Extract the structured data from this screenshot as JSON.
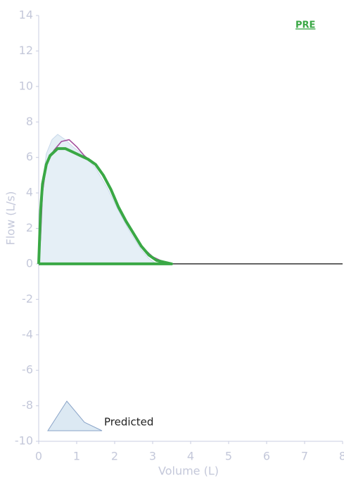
{
  "chart_data": {
    "type": "line",
    "xlabel": "Volume (L)",
    "ylabel": "Flow (L/s)",
    "xlim": [
      0,
      8
    ],
    "xticks": [
      0,
      1,
      2,
      3,
      4,
      5,
      6,
      7,
      8
    ],
    "ylim": [
      -10,
      14
    ],
    "yticks": [
      -10,
      -8,
      -6,
      -4,
      -2,
      0,
      2,
      4,
      6,
      8,
      10,
      12,
      14
    ],
    "series": [
      {
        "name": "Predicted",
        "color": "#dce9f3",
        "fill": true,
        "x": [
          0,
          0.1,
          0.2,
          0.35,
          0.5,
          0.7,
          0.9,
          1.2,
          1.5,
          1.8,
          2.1,
          2.4,
          2.7,
          2.9,
          3.1
        ],
        "values": [
          0,
          4.5,
          6.2,
          7.0,
          7.3,
          7.0,
          6.6,
          6.1,
          5.4,
          4.3,
          3.0,
          1.8,
          0.8,
          0.3,
          0
        ]
      },
      {
        "color": "#a04a9a",
        "x": [
          0,
          0.05,
          0.1,
          0.2,
          0.4,
          0.6,
          0.8,
          1.0,
          1.2,
          1.5,
          1.8,
          2.1,
          2.4,
          2.7,
          3.0,
          3.3,
          3.4
        ],
        "values": [
          0,
          1.5,
          4,
          5.6,
          6.4,
          6.9,
          7.0,
          6.6,
          6.1,
          5.6,
          4.6,
          3.1,
          2.0,
          1.0,
          0.4,
          0.1,
          0
        ]
      },
      {
        "name": "PRE",
        "color": "#3aa845",
        "x": [
          0,
          0.05,
          0.1,
          0.2,
          0.3,
          0.5,
          0.7,
          0.9,
          1.1,
          1.3,
          1.5,
          1.7,
          1.9,
          2.1,
          2.3,
          2.5,
          2.7,
          2.9,
          3.1,
          3.3,
          3.5,
          0
        ],
        "values": [
          0,
          3,
          4.5,
          5.6,
          6.1,
          6.5,
          6.5,
          6.3,
          6.1,
          5.9,
          5.6,
          5.0,
          4.2,
          3.2,
          2.4,
          1.7,
          1.0,
          0.5,
          0.2,
          0.1,
          0,
          0
        ]
      }
    ]
  }
}
